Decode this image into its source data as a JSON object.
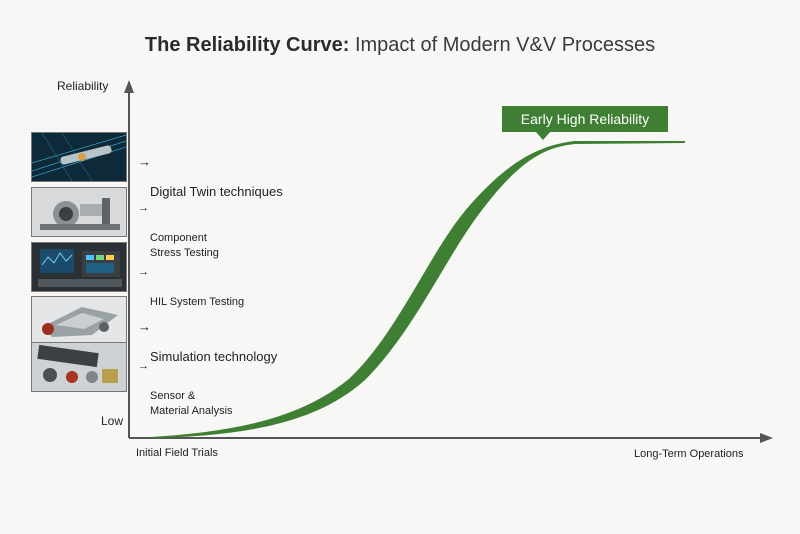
{
  "title": {
    "bold": "The Reliability Curve:",
    "rest": "Impact of Modern V&V Processes"
  },
  "axes": {
    "y_top": "Reliability",
    "y_bottom": "Low",
    "x_left": "Initial Field Trials",
    "x_right": "Long-Term Operations"
  },
  "callout": "Early High Reliability",
  "items": [
    {
      "label": "Digital Twin techniques",
      "icon": "digital-twin-image"
    },
    {
      "label": "Component\nStress Testing",
      "icon": "stress-testing-image"
    },
    {
      "label": "HIL System Testing",
      "icon": "hil-testing-image"
    },
    {
      "label": "Simulation technology",
      "icon": "simulation-image"
    },
    {
      "label": "Sensor &\nMaterial Analysis",
      "icon": "sensor-analysis-image"
    }
  ],
  "colors": {
    "curve": "#3f7f33",
    "axis": "#555555",
    "callout": "#3f7f33"
  }
}
